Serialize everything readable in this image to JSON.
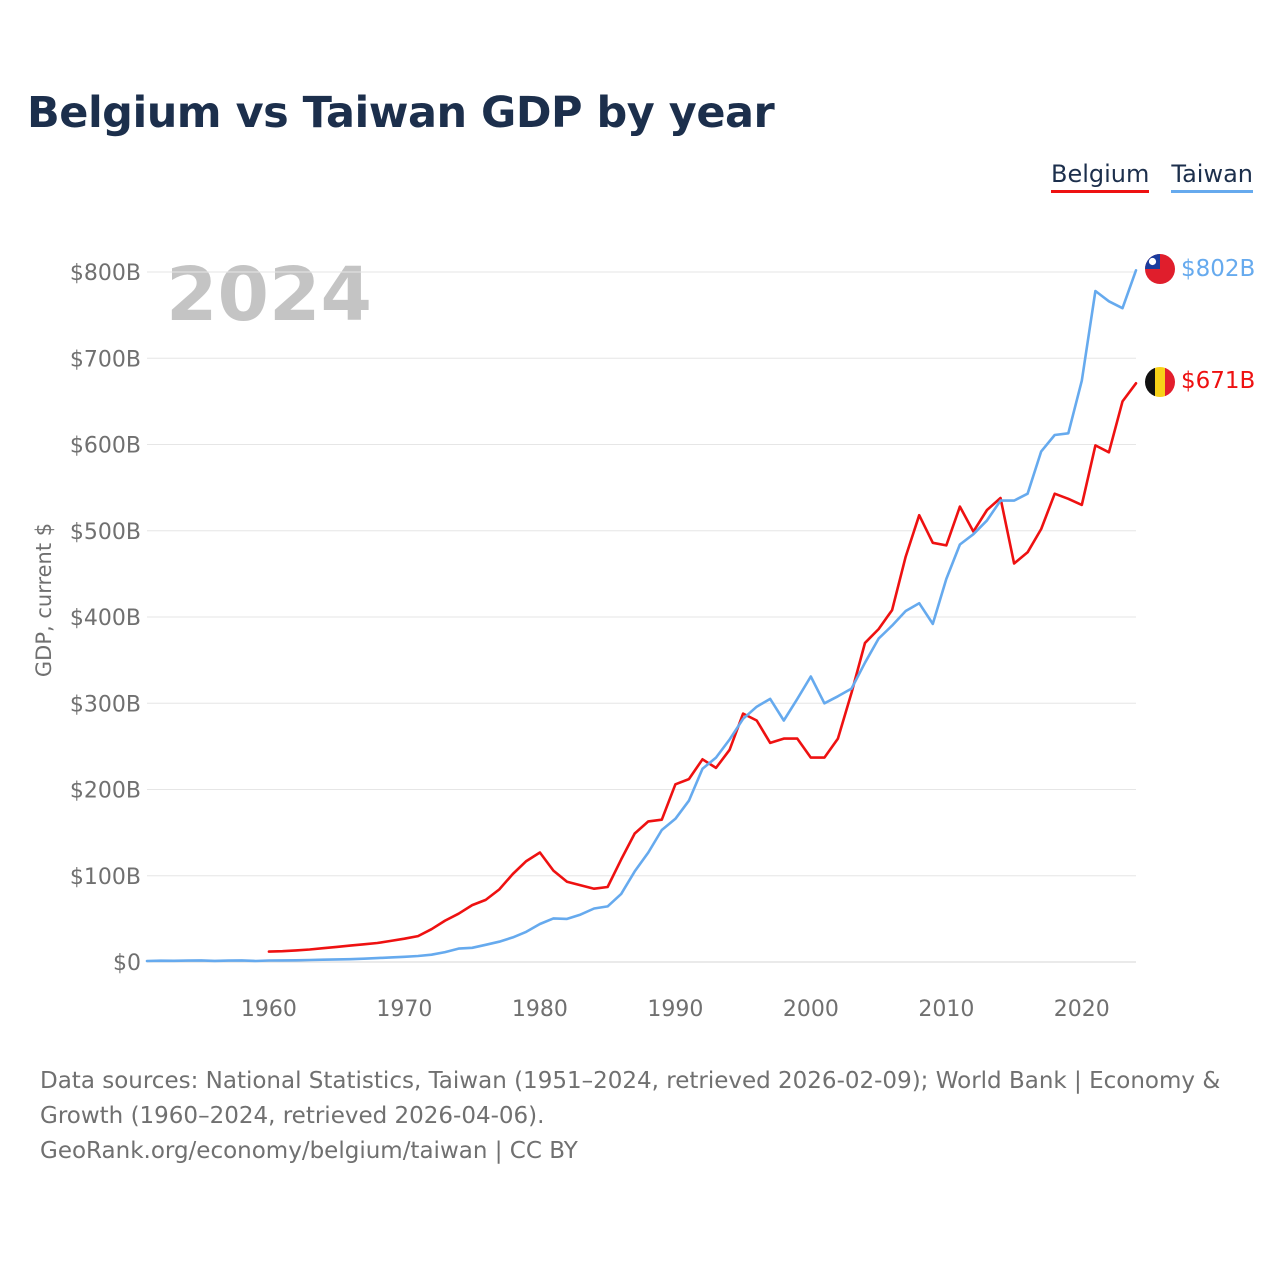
{
  "title": "Belgium vs Taiwan GDP by year",
  "legend": {
    "belgium": "Belgium",
    "taiwan": "Taiwan"
  },
  "year_watermark": "2024",
  "footer": {
    "sources": "Data sources: National Statistics, Taiwan (1951–2024, retrieved 2026-02-09); World Bank | Economy & Growth (1960–2024, retrieved 2026-04-06).",
    "credit": "GeoRank.org/economy/belgium/taiwan | CC BY"
  },
  "chart_data": {
    "type": "line",
    "ylabel": "GDP, current $",
    "xlabel": "",
    "xlim": [
      1951,
      2024
    ],
    "ylim": [
      0,
      800
    ],
    "y_unit": "billions USD",
    "y_ticks": [
      0,
      100,
      200,
      300,
      400,
      500,
      600,
      700,
      800
    ],
    "y_tick_labels": [
      "$0",
      "$100B",
      "$200B",
      "$300B",
      "$400B",
      "$500B",
      "$600B",
      "$700B",
      "$800B"
    ],
    "x_ticks": [
      1960,
      1970,
      1980,
      1990,
      2000,
      2010,
      2020
    ],
    "x_tick_labels": [
      "1960",
      "1970",
      "1980",
      "1990",
      "2000",
      "2010",
      "2020"
    ],
    "grid": true,
    "colors": {
      "belgium": "#ee1111",
      "taiwan": "#66aaee"
    },
    "series": [
      {
        "key": "belgium",
        "name": "Belgium",
        "end_label": "$671B",
        "x": [
          1960,
          1961,
          1962,
          1963,
          1964,
          1965,
          1966,
          1967,
          1968,
          1969,
          1970,
          1971,
          1972,
          1973,
          1974,
          1975,
          1976,
          1977,
          1978,
          1979,
          1980,
          1981,
          1982,
          1983,
          1984,
          1985,
          1986,
          1987,
          1988,
          1989,
          1990,
          1991,
          1992,
          1993,
          1994,
          1995,
          1996,
          1997,
          1998,
          1999,
          2000,
          2001,
          2002,
          2003,
          2004,
          2005,
          2006,
          2007,
          2008,
          2009,
          2010,
          2011,
          2012,
          2013,
          2014,
          2015,
          2016,
          2017,
          2018,
          2019,
          2020,
          2021,
          2022,
          2023,
          2024
        ],
        "values": [
          12,
          12.5,
          13.5,
          14.5,
          16,
          17.5,
          19,
          20.5,
          22,
          24.5,
          27,
          30,
          38,
          48,
          56,
          66,
          72,
          84,
          102,
          117,
          127,
          106,
          93,
          89,
          85,
          87,
          119,
          149,
          163,
          165,
          206,
          212,
          235,
          225,
          246,
          288,
          280,
          254,
          259,
          259,
          237,
          237,
          259,
          312,
          370,
          386,
          408,
          470,
          518,
          486,
          483,
          528,
          499,
          524,
          538,
          462,
          475,
          502,
          543,
          537,
          530,
          599,
          591,
          650,
          671
        ]
      },
      {
        "key": "taiwan",
        "name": "Taiwan",
        "end_label": "$802B",
        "x": [
          1951,
          1952,
          1953,
          1954,
          1955,
          1956,
          1957,
          1958,
          1959,
          1960,
          1961,
          1962,
          1963,
          1964,
          1965,
          1966,
          1967,
          1968,
          1969,
          1970,
          1971,
          1972,
          1973,
          1974,
          1975,
          1976,
          1977,
          1978,
          1979,
          1980,
          1981,
          1982,
          1983,
          1984,
          1985,
          1986,
          1987,
          1988,
          1989,
          1990,
          1991,
          1992,
          1993,
          1994,
          1995,
          1996,
          1997,
          1998,
          1999,
          2000,
          2001,
          2002,
          2003,
          2004,
          2005,
          2006,
          2007,
          2008,
          2009,
          2010,
          2011,
          2012,
          2013,
          2014,
          2015,
          2016,
          2017,
          2018,
          2019,
          2020,
          2021,
          2022,
          2023,
          2024
        ],
        "values": [
          1.2,
          1.5,
          1.4,
          1.6,
          1.8,
          1.3,
          1.6,
          1.8,
          1.2,
          1.7,
          1.8,
          2.0,
          2.3,
          2.7,
          3.0,
          3.3,
          3.8,
          4.5,
          5.3,
          6.0,
          7.0,
          8.5,
          11.5,
          15.5,
          16.5,
          20,
          23.5,
          28.5,
          35,
          44,
          50.5,
          50,
          55,
          62,
          64.5,
          79,
          105,
          127,
          153,
          166,
          187,
          224,
          237,
          258,
          282,
          296,
          305,
          280,
          305,
          331,
          300,
          308,
          317,
          347,
          375,
          390,
          407,
          416,
          392,
          444,
          484,
          496,
          512,
          535,
          535,
          543,
          592,
          611,
          613,
          674,
          778,
          766,
          758,
          802
        ]
      }
    ]
  }
}
